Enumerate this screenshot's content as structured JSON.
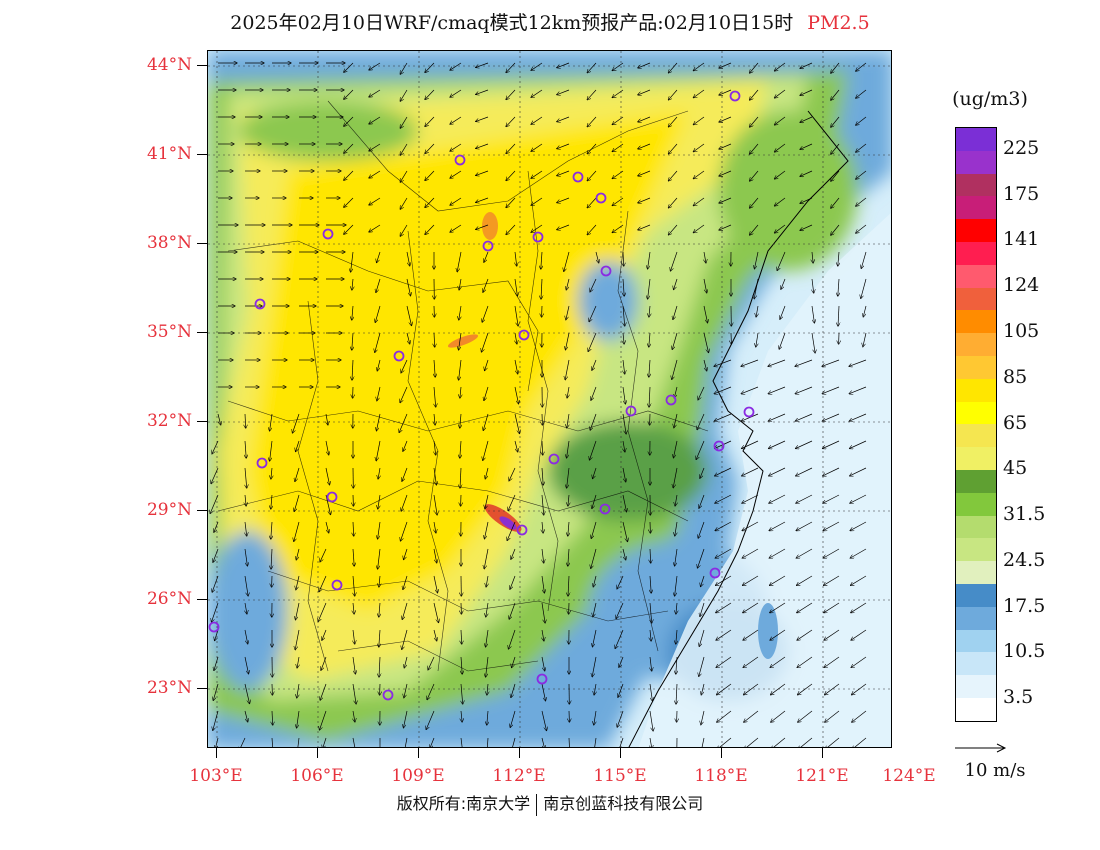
{
  "title": {
    "main": "2025年02月10日WRF/cmaq模式12km预报产品:02月10日15时",
    "pollutant": "PM2.5"
  },
  "axes": {
    "latitudes": [
      "44°N",
      "41°N",
      "38°N",
      "35°N",
      "32°N",
      "29°N",
      "26°N",
      "23°N"
    ],
    "longitudes": [
      "103°E",
      "106°E",
      "109°E",
      "112°E",
      "115°E",
      "118°E",
      "121°E",
      "124°E"
    ]
  },
  "legend": {
    "unit": "(ug/m3)",
    "labels": [
      "225",
      "175",
      "141",
      "124",
      "105",
      "85",
      "65",
      "45",
      "31.5",
      "24.5",
      "17.5",
      "10.5",
      "3.5"
    ],
    "colors": [
      "#7b2fd6",
      "#9932cc",
      "#b03060",
      "#c81e78",
      "#ff0000",
      "#ff1e50",
      "#ff5a6e",
      "#f0603c",
      "#ff8c00",
      "#ffad32",
      "#ffc832",
      "#ffe600",
      "#ffff00",
      "#f5e650",
      "#f0f064",
      "#5fa032",
      "#82c83c",
      "#b4dc6e",
      "#c8e682",
      "#e1f0be",
      "#468cc8",
      "#6eaadc",
      "#a0d2f0",
      "#c8e6f8",
      "#e6f4fc",
      "#ffffff"
    ]
  },
  "wind_reference": {
    "label": "10 m/s"
  },
  "copyright": {
    "owner": "版权所有:南京大学",
    "partner": "南京创蓝科技有限公司"
  }
}
